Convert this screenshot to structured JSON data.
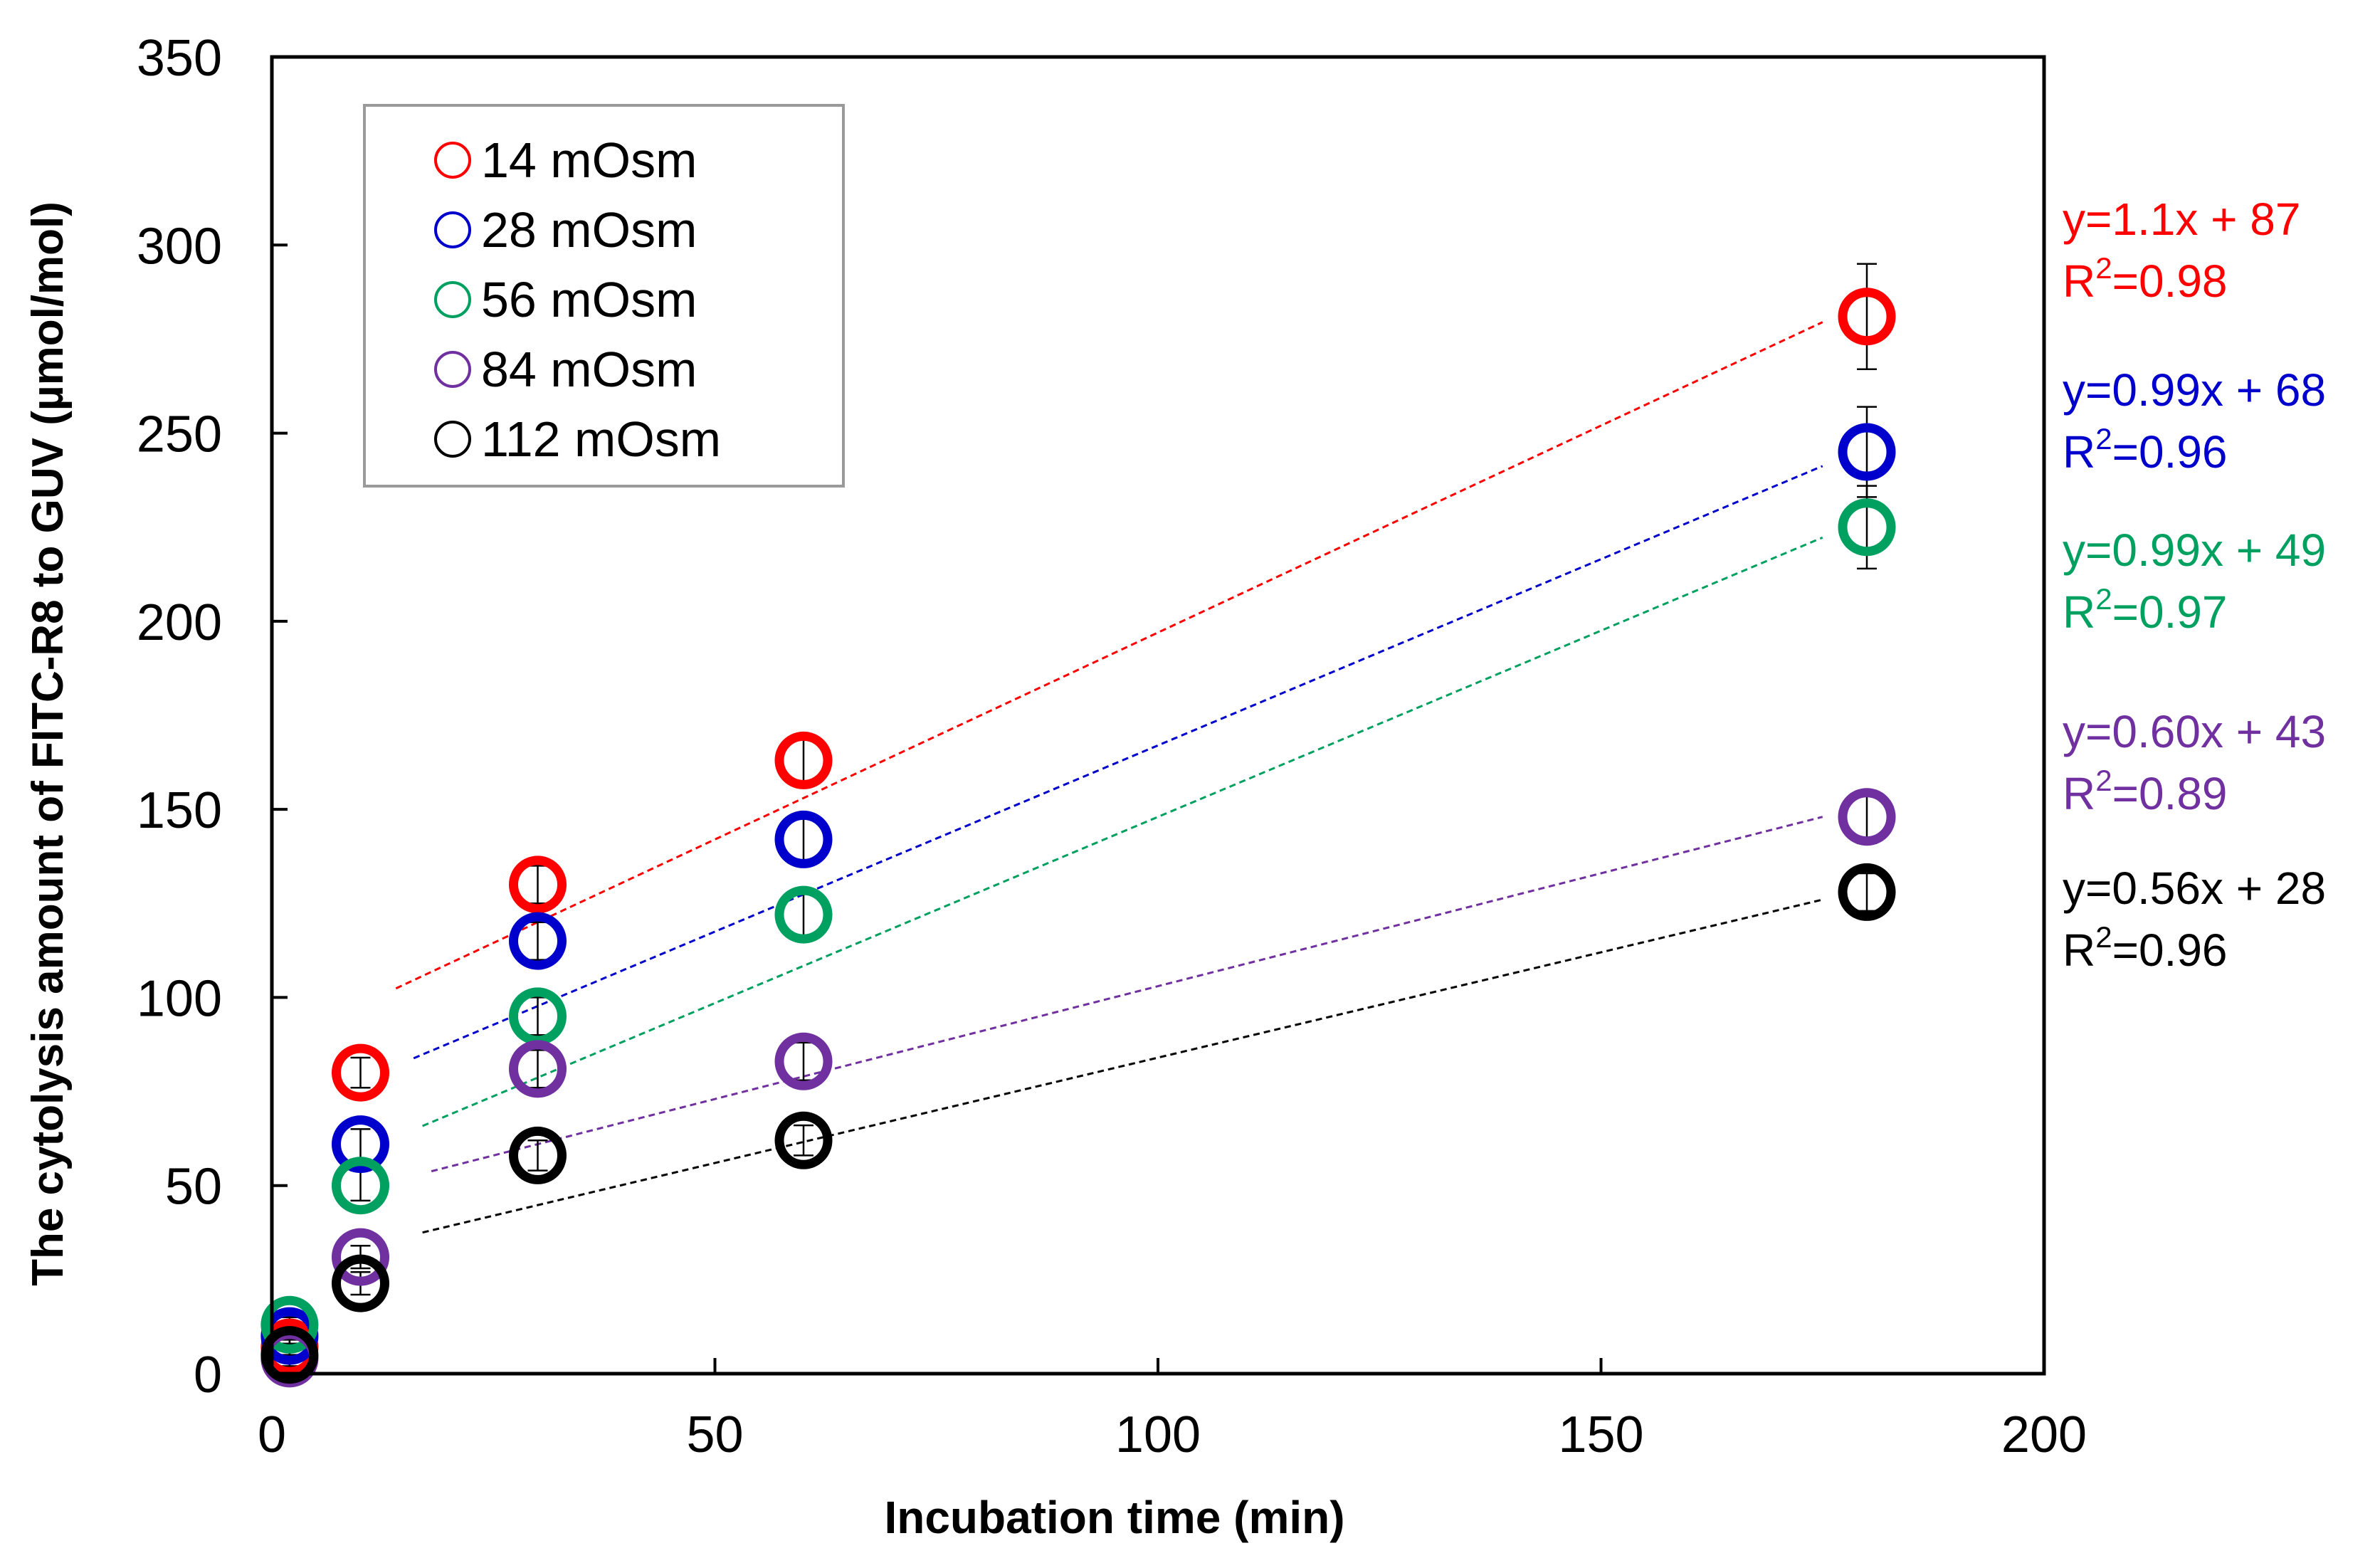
{
  "chart_data": {
    "type": "scatter",
    "title": "",
    "xlabel": "Incubation time (min)",
    "ylabel": "The cytolysis amount of  FITC-R8 to GUV (µmol/mol)",
    "xlim": [
      0,
      200
    ],
    "ylim": [
      0,
      350
    ],
    "x_ticks": [
      0,
      50,
      100,
      150,
      200
    ],
    "y_ticks": [
      0,
      50,
      100,
      150,
      200,
      250,
      300,
      350
    ],
    "grid": false,
    "legend_position": "top-left",
    "x": [
      2,
      10,
      30,
      60,
      180
    ],
    "series": [
      {
        "name": "14 mOsm",
        "color": "#ff0000",
        "values": [
          7,
          80,
          130,
          163,
          281
        ],
        "errors": [
          2,
          4,
          5,
          6,
          14
        ],
        "fit": {
          "slope": 1.1,
          "intercept": 87,
          "x_range": [
            14,
            175
          ],
          "equation": "y=1.1x + 87",
          "r2_prefix": "R",
          "r2_sup": "2",
          "r2_value": "=0.98"
        }
      },
      {
        "name": "28 mOsm",
        "color": "#0000cc",
        "values": [
          10,
          61,
          115,
          142,
          245
        ],
        "errors": [
          2,
          4,
          5,
          6,
          12
        ],
        "fit": {
          "slope": 0.99,
          "intercept": 68,
          "x_range": [
            16,
            175
          ],
          "equation": "y=0.99x + 68",
          "r2_prefix": "R",
          "r2_sup": "2",
          "r2_value": "=0.96"
        }
      },
      {
        "name": "56 mOsm",
        "color": "#00a060",
        "values": [
          13,
          50,
          95,
          122,
          225
        ],
        "errors": [
          2,
          4,
          5,
          6,
          11
        ],
        "fit": {
          "slope": 0.99,
          "intercept": 49,
          "x_range": [
            17,
            175
          ],
          "equation": "y=0.99x + 49",
          "r2_prefix": "R",
          "r2_sup": "2",
          "r2_value": "=0.97"
        }
      },
      {
        "name": "84 mOsm",
        "color": "#7030a0",
        "values": [
          4,
          31,
          81,
          83,
          148
        ],
        "errors": [
          2,
          3,
          5,
          5,
          7
        ],
        "fit": {
          "slope": 0.6,
          "intercept": 43,
          "x_range": [
            18,
            175
          ],
          "equation": "y=0.60x + 43",
          "r2_prefix": "R",
          "r2_sup": "2",
          "r2_value": "=0.89"
        }
      },
      {
        "name": "112 mOsm",
        "color": "#000000",
        "values": [
          5,
          24,
          58,
          62,
          128
        ],
        "errors": [
          2,
          3,
          4,
          4,
          5
        ],
        "fit": {
          "slope": 0.56,
          "intercept": 28,
          "x_range": [
            17,
            175
          ],
          "equation": "y=0.56x + 28",
          "r2_prefix": "R",
          "r2_sup": "2",
          "r2_value": "=0.96"
        }
      }
    ]
  }
}
